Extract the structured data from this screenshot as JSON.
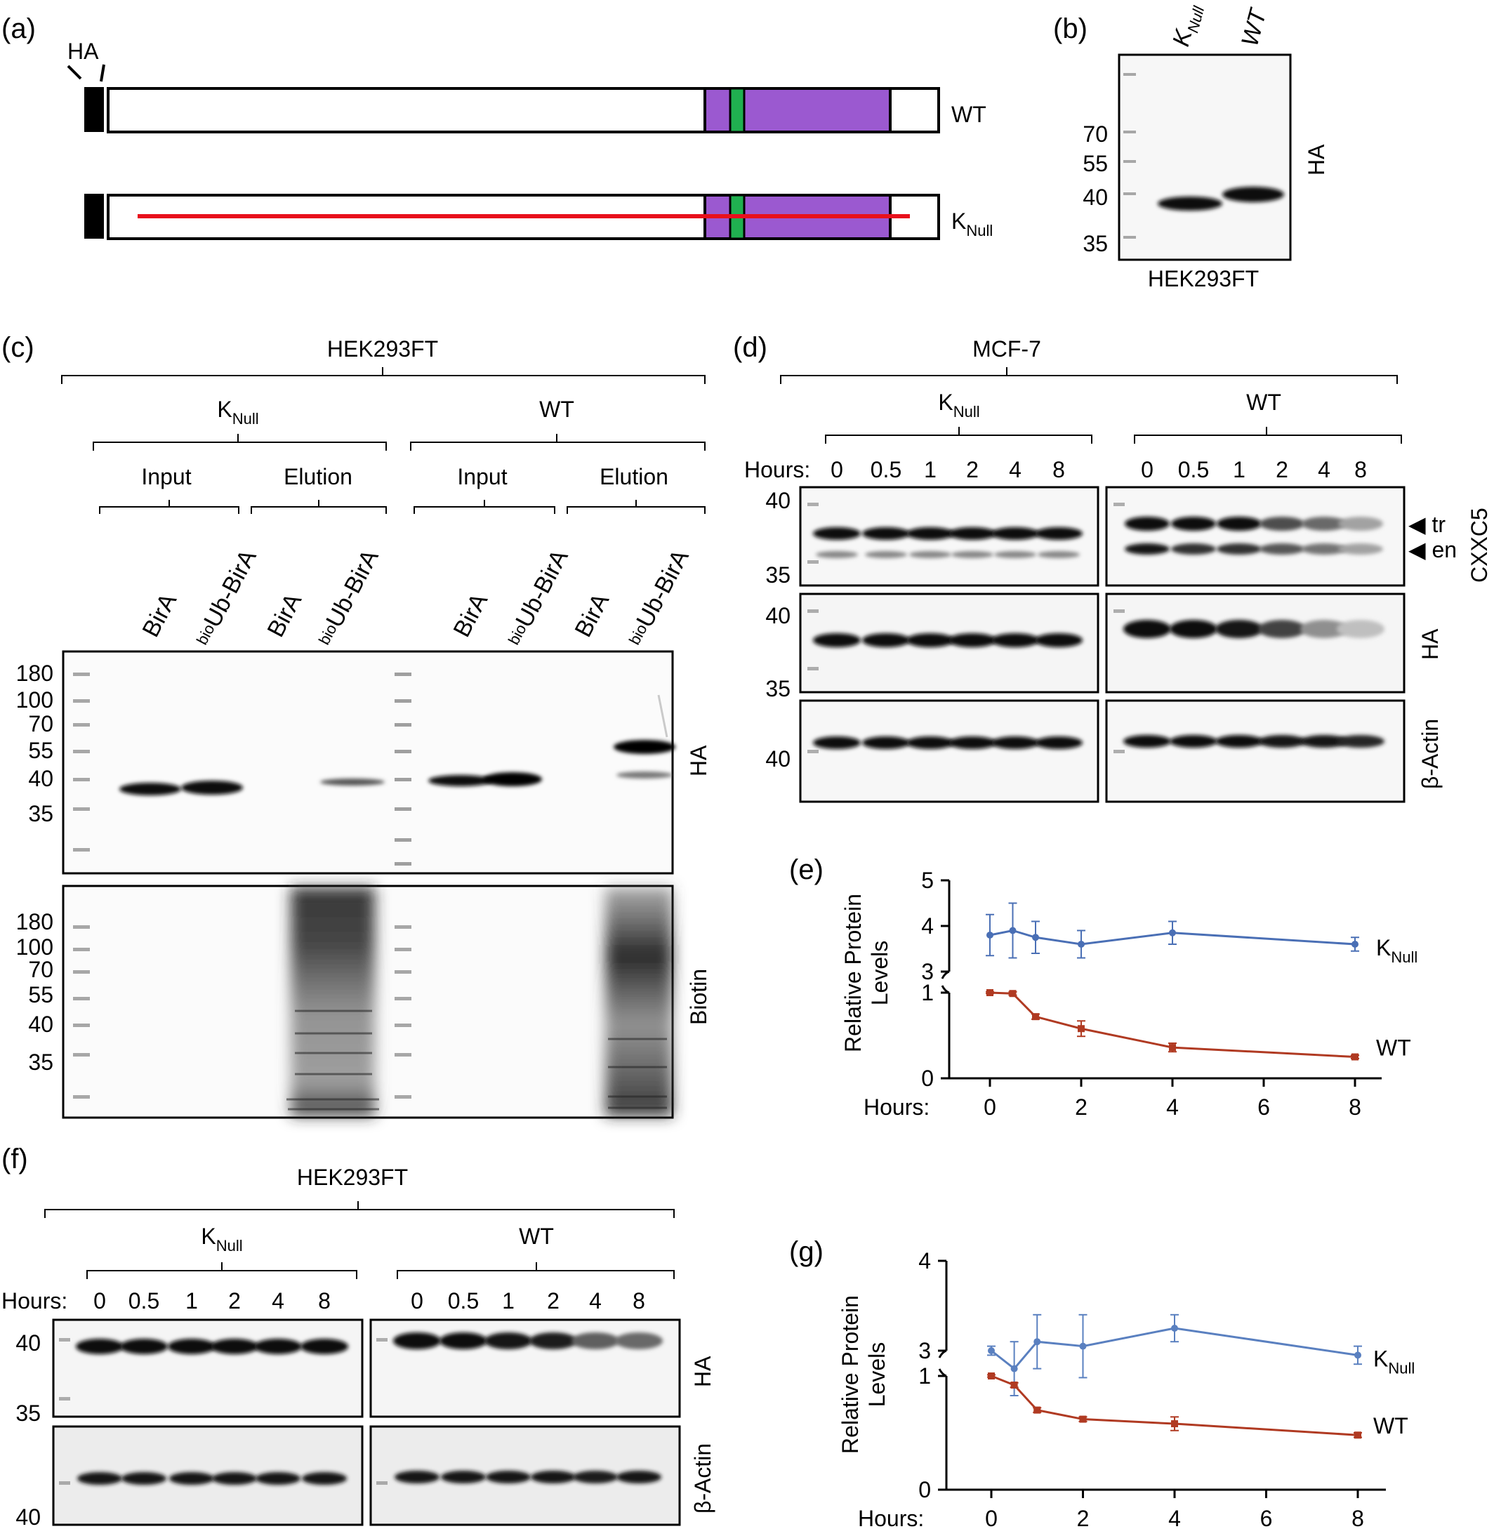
{
  "panels": {
    "a": {
      "label": "(a)",
      "tag": "HA",
      "rows": [
        "WT",
        "K"
      ],
      "sub": "Null"
    },
    "b": {
      "label": "(b)",
      "lanes": [
        "K",
        "WT"
      ],
      "lane_sub": "Null",
      "markers": [
        "70",
        "55",
        "40",
        "35"
      ],
      "antibody": "HA",
      "cell_line": "HEK293FT"
    },
    "c": {
      "label": "(c)",
      "cell_line": "HEK293FT",
      "groups": [
        {
          "name": "K",
          "sub": "Null",
          "subgroups": [
            "Input",
            "Elution"
          ]
        },
        {
          "name": "WT",
          "sub": "",
          "subgroups": [
            "Input",
            "Elution"
          ]
        }
      ],
      "lanes": [
        "BirA",
        "Ub-BirA",
        "BirA",
        "Ub-BirA",
        "BirA",
        "Ub-BirA",
        "BirA",
        "Ub-BirA"
      ],
      "lane_prefix": "bio",
      "markers": [
        "180",
        "100",
        "70",
        "55",
        "40",
        "35"
      ],
      "blots": [
        "HA",
        "Biotin"
      ]
    },
    "d": {
      "label": "(d)",
      "cell_line": "MCF-7",
      "groups": [
        {
          "name": "K",
          "sub": "Null"
        },
        {
          "name": "WT",
          "sub": ""
        }
      ],
      "hours_label": "Hours:",
      "hours": [
        "0",
        "0.5",
        "1",
        "2",
        "4",
        "8"
      ],
      "blots": [
        {
          "name": "CXXC5",
          "markers": [
            "40",
            "35"
          ]
        },
        {
          "name": "HA",
          "markers": [
            "40",
            "35"
          ]
        },
        {
          "name": "β-Actin",
          "markers": [
            "40"
          ]
        }
      ],
      "arrows": [
        "tr",
        "en"
      ]
    },
    "e": {
      "label": "(e)"
    },
    "f": {
      "label": "(f)",
      "cell_line": "HEK293FT",
      "groups": [
        {
          "name": "K",
          "sub": "Null"
        },
        {
          "name": "WT",
          "sub": ""
        }
      ],
      "hours_label": "Hours:",
      "hours": [
        "0",
        "0.5",
        "1",
        "2",
        "4",
        "8"
      ],
      "blots": [
        {
          "name": "HA",
          "markers": [
            "40",
            "35"
          ]
        },
        {
          "name": "β-Actin",
          "markers": [
            "40"
          ]
        }
      ]
    },
    "g": {
      "label": "(g)"
    }
  },
  "chart_data": [
    {
      "type": "line",
      "panel": "e",
      "ylabel": "Relative Protein Levels",
      "xlabel": "Hours:",
      "x_ticks": [
        0,
        2,
        4,
        6,
        8
      ],
      "y_ticks_lower": [
        0,
        1
      ],
      "y_ticks_upper": [
        3,
        4,
        5
      ],
      "axis_break": true,
      "series": [
        {
          "name": "K",
          "name_sub": "Null",
          "color": "#4a6fb5",
          "x": [
            0,
            0.5,
            1,
            2,
            4,
            8
          ],
          "values": [
            3.8,
            3.9,
            3.75,
            3.6,
            3.85,
            3.6
          ],
          "errors": [
            0.45,
            0.6,
            0.35,
            0.3,
            0.25,
            0.15
          ]
        },
        {
          "name": "WT",
          "name_sub": "",
          "color": "#b03a22",
          "x": [
            0,
            0.5,
            1,
            2,
            4,
            8
          ],
          "values": [
            1.0,
            0.99,
            0.72,
            0.58,
            0.36,
            0.25
          ],
          "errors": [
            0.01,
            0.02,
            0.03,
            0.09,
            0.05,
            0.02
          ]
        }
      ]
    },
    {
      "type": "line",
      "panel": "g",
      "ylabel": "Relative Protein Levels",
      "xlabel": "Hours:",
      "x_ticks": [
        0,
        2,
        4,
        6,
        8
      ],
      "y_ticks_lower": [
        0,
        1
      ],
      "y_ticks_upper": [
        3,
        4
      ],
      "axis_break": true,
      "series": [
        {
          "name": "K",
          "name_sub": "Null",
          "color": "#5a80c0",
          "x": [
            0,
            0.5,
            1,
            2,
            4,
            8
          ],
          "values": [
            3.0,
            2.8,
            3.1,
            3.05,
            3.25,
            2.95
          ],
          "errors": [
            0.05,
            0.3,
            0.3,
            0.35,
            0.15,
            0.1
          ]
        },
        {
          "name": "WT",
          "name_sub": "",
          "color": "#b03a22",
          "x": [
            0,
            0.5,
            1,
            2,
            4,
            8
          ],
          "values": [
            1.0,
            0.92,
            0.7,
            0.62,
            0.58,
            0.48
          ],
          "errors": [
            0.01,
            0.02,
            0.02,
            0.02,
            0.06,
            0.02
          ]
        }
      ]
    }
  ]
}
